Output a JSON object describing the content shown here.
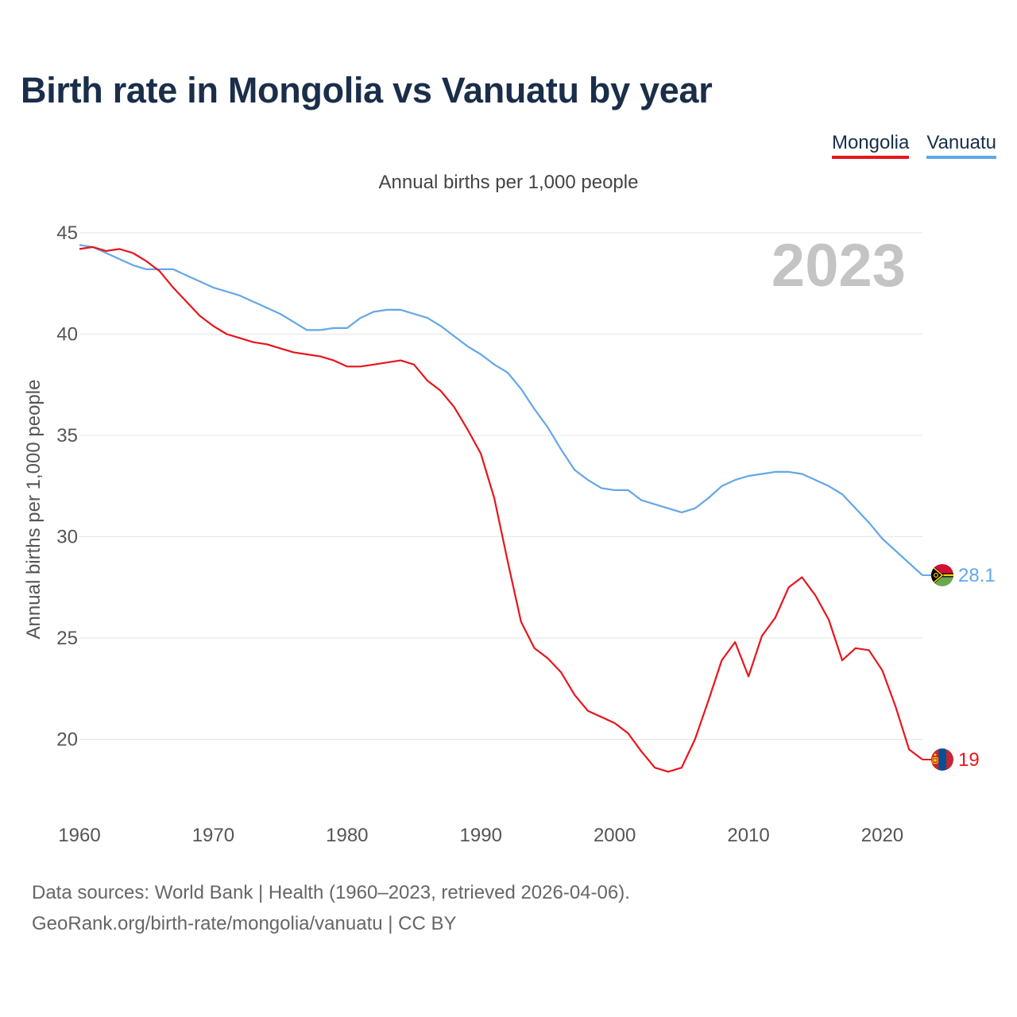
{
  "title": "Birth rate in Mongolia vs Vanuatu by year",
  "subtitle": "Annual births per 1,000 people",
  "legend": [
    {
      "label": "Mongolia",
      "color": "#e8151b"
    },
    {
      "label": "Vanuatu",
      "color": "#63a7e6"
    }
  ],
  "year_watermark": "2023",
  "footer": {
    "line1": "Data sources: World Bank | Health (1960–2023, retrieved 2026-04-06).",
    "line2": "GeoRank.org/birth-rate/mongolia/vanuatu | CC BY"
  },
  "chart_data": {
    "type": "line",
    "title": "Birth rate in Mongolia vs Vanuatu by year",
    "subtitle": "Annual births per 1,000 people",
    "xlabel": "",
    "ylabel": "Annual births per 1,000 people",
    "xlim": [
      1960,
      2023
    ],
    "ylim": [
      17,
      45
    ],
    "x_ticks": [
      1960,
      1970,
      1980,
      1990,
      2000,
      2010,
      2020
    ],
    "y_ticks": [
      20,
      25,
      30,
      35,
      40,
      45
    ],
    "grid": true,
    "legend_position": "top-right",
    "x": [
      1960,
      1961,
      1962,
      1963,
      1964,
      1965,
      1966,
      1967,
      1968,
      1969,
      1970,
      1971,
      1972,
      1973,
      1974,
      1975,
      1976,
      1977,
      1978,
      1979,
      1980,
      1981,
      1982,
      1983,
      1984,
      1985,
      1986,
      1987,
      1988,
      1989,
      1990,
      1991,
      1992,
      1993,
      1994,
      1995,
      1996,
      1997,
      1998,
      1999,
      2000,
      2001,
      2002,
      2003,
      2004,
      2005,
      2006,
      2007,
      2008,
      2009,
      2010,
      2011,
      2012,
      2013,
      2014,
      2015,
      2016,
      2017,
      2018,
      2019,
      2020,
      2021,
      2022,
      2023
    ],
    "series": [
      {
        "name": "Mongolia",
        "color": "#e8151b",
        "end_label": "19",
        "values": [
          44.2,
          44.3,
          44.1,
          44.2,
          44.0,
          43.6,
          43.1,
          42.3,
          41.6,
          40.9,
          40.4,
          40.0,
          39.8,
          39.6,
          39.5,
          39.3,
          39.1,
          39.0,
          38.9,
          38.7,
          38.4,
          38.4,
          38.5,
          38.6,
          38.7,
          38.5,
          37.7,
          37.2,
          36.4,
          35.3,
          34.1,
          31.9,
          28.8,
          25.8,
          24.5,
          24.0,
          23.3,
          22.2,
          21.4,
          21.1,
          20.8,
          20.3,
          19.4,
          18.6,
          18.4,
          18.6,
          20.0,
          21.9,
          23.9,
          24.8,
          23.1,
          25.1,
          26.0,
          27.5,
          28.0,
          27.1,
          25.9,
          23.9,
          24.5,
          24.4,
          23.4,
          21.6,
          19.5,
          19.0
        ]
      },
      {
        "name": "Vanuatu",
        "color": "#63a7e6",
        "end_label": "28.1",
        "values": [
          44.4,
          44.3,
          44.0,
          43.7,
          43.4,
          43.2,
          43.2,
          43.2,
          42.9,
          42.6,
          42.3,
          42.1,
          41.9,
          41.6,
          41.3,
          41.0,
          40.6,
          40.2,
          40.2,
          40.3,
          40.3,
          40.8,
          41.1,
          41.2,
          41.2,
          41.0,
          40.8,
          40.4,
          39.9,
          39.4,
          39.0,
          38.5,
          38.1,
          37.3,
          36.3,
          35.4,
          34.3,
          33.3,
          32.8,
          32.4,
          32.3,
          32.3,
          31.8,
          31.6,
          31.4,
          31.2,
          31.4,
          31.9,
          32.5,
          32.8,
          33.0,
          33.1,
          33.2,
          33.2,
          33.1,
          32.8,
          32.5,
          32.1,
          31.4,
          30.7,
          29.9,
          29.3,
          28.7,
          28.1
        ]
      }
    ]
  }
}
